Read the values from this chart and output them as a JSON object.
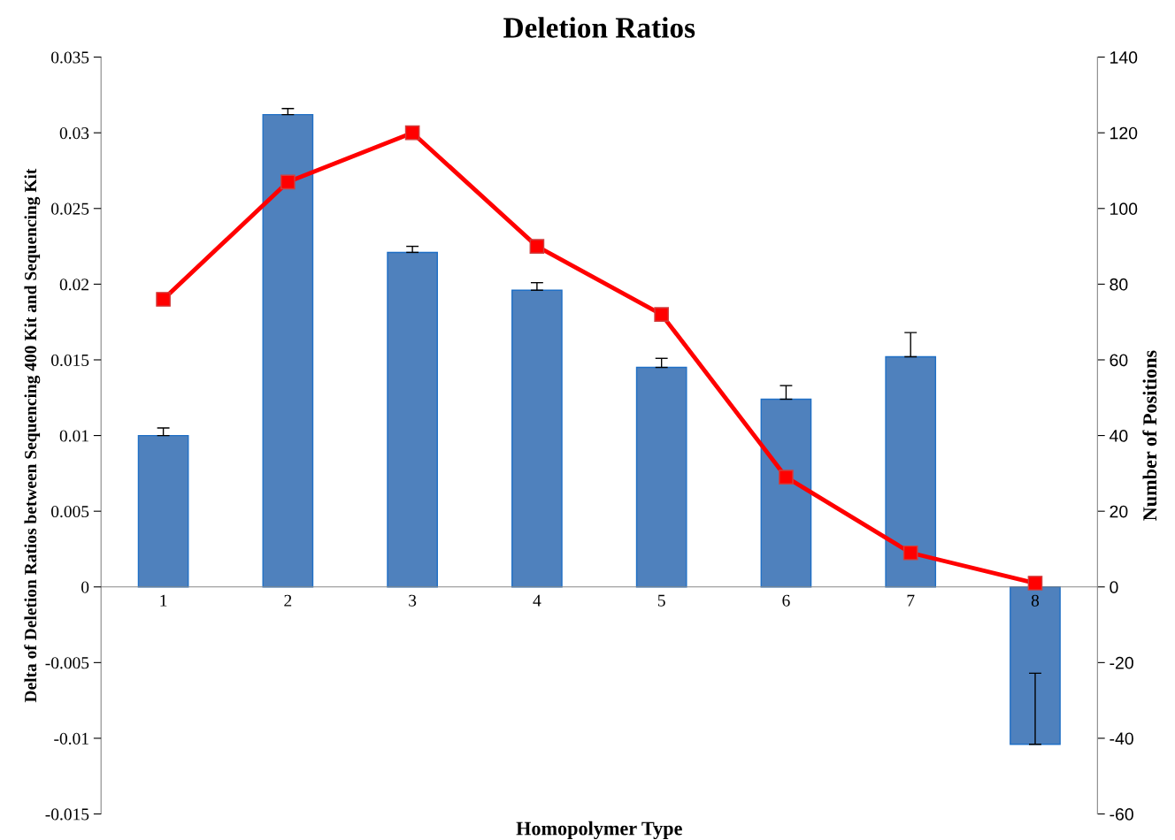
{
  "chart_data": {
    "type": "bar",
    "title": "Deletion Ratios",
    "xlabel": "Homopolymer Type",
    "ylabel": "Delta of Deletion Ratios between Sequencing 400 Kit and Sequencing Kit",
    "y2label": "Number of Positions",
    "categories": [
      "1",
      "2",
      "3",
      "4",
      "5",
      "6",
      "7",
      "8"
    ],
    "series": [
      {
        "color": "#4f81bd",
        "values": [
          0.01,
          0.0312,
          0.0221,
          0.0196,
          0.0145,
          0.0124,
          0.0152,
          -0.0104
        ],
        "errors": [
          [
            0.01,
            0.0105
          ],
          [
            0.0312,
            0.0316
          ],
          [
            0.0221,
            0.0225
          ],
          [
            0.0196,
            0.0201
          ],
          [
            0.0145,
            0.0151
          ],
          [
            0.0124,
            0.0133
          ],
          [
            0.0152,
            0.0168
          ],
          [
            -0.0104,
            -0.0057
          ]
        ]
      },
      {
        "type": "line",
        "axis": "y2",
        "color": "#ff0000",
        "marker": "square",
        "values": [
          76,
          107,
          120,
          90,
          72,
          29,
          9,
          1
        ]
      }
    ],
    "ylim": [
      -0.015,
      0.035
    ],
    "yticks": [
      -0.015,
      -0.01,
      -0.005,
      0,
      0.005,
      0.01,
      0.015,
      0.02,
      0.025,
      0.03,
      0.035
    ],
    "y2lim": [
      -60,
      140
    ],
    "y2ticks": [
      -60,
      -40,
      -20,
      0,
      20,
      40,
      60,
      80,
      100,
      120,
      140
    ],
    "grid": false,
    "legend": false
  }
}
